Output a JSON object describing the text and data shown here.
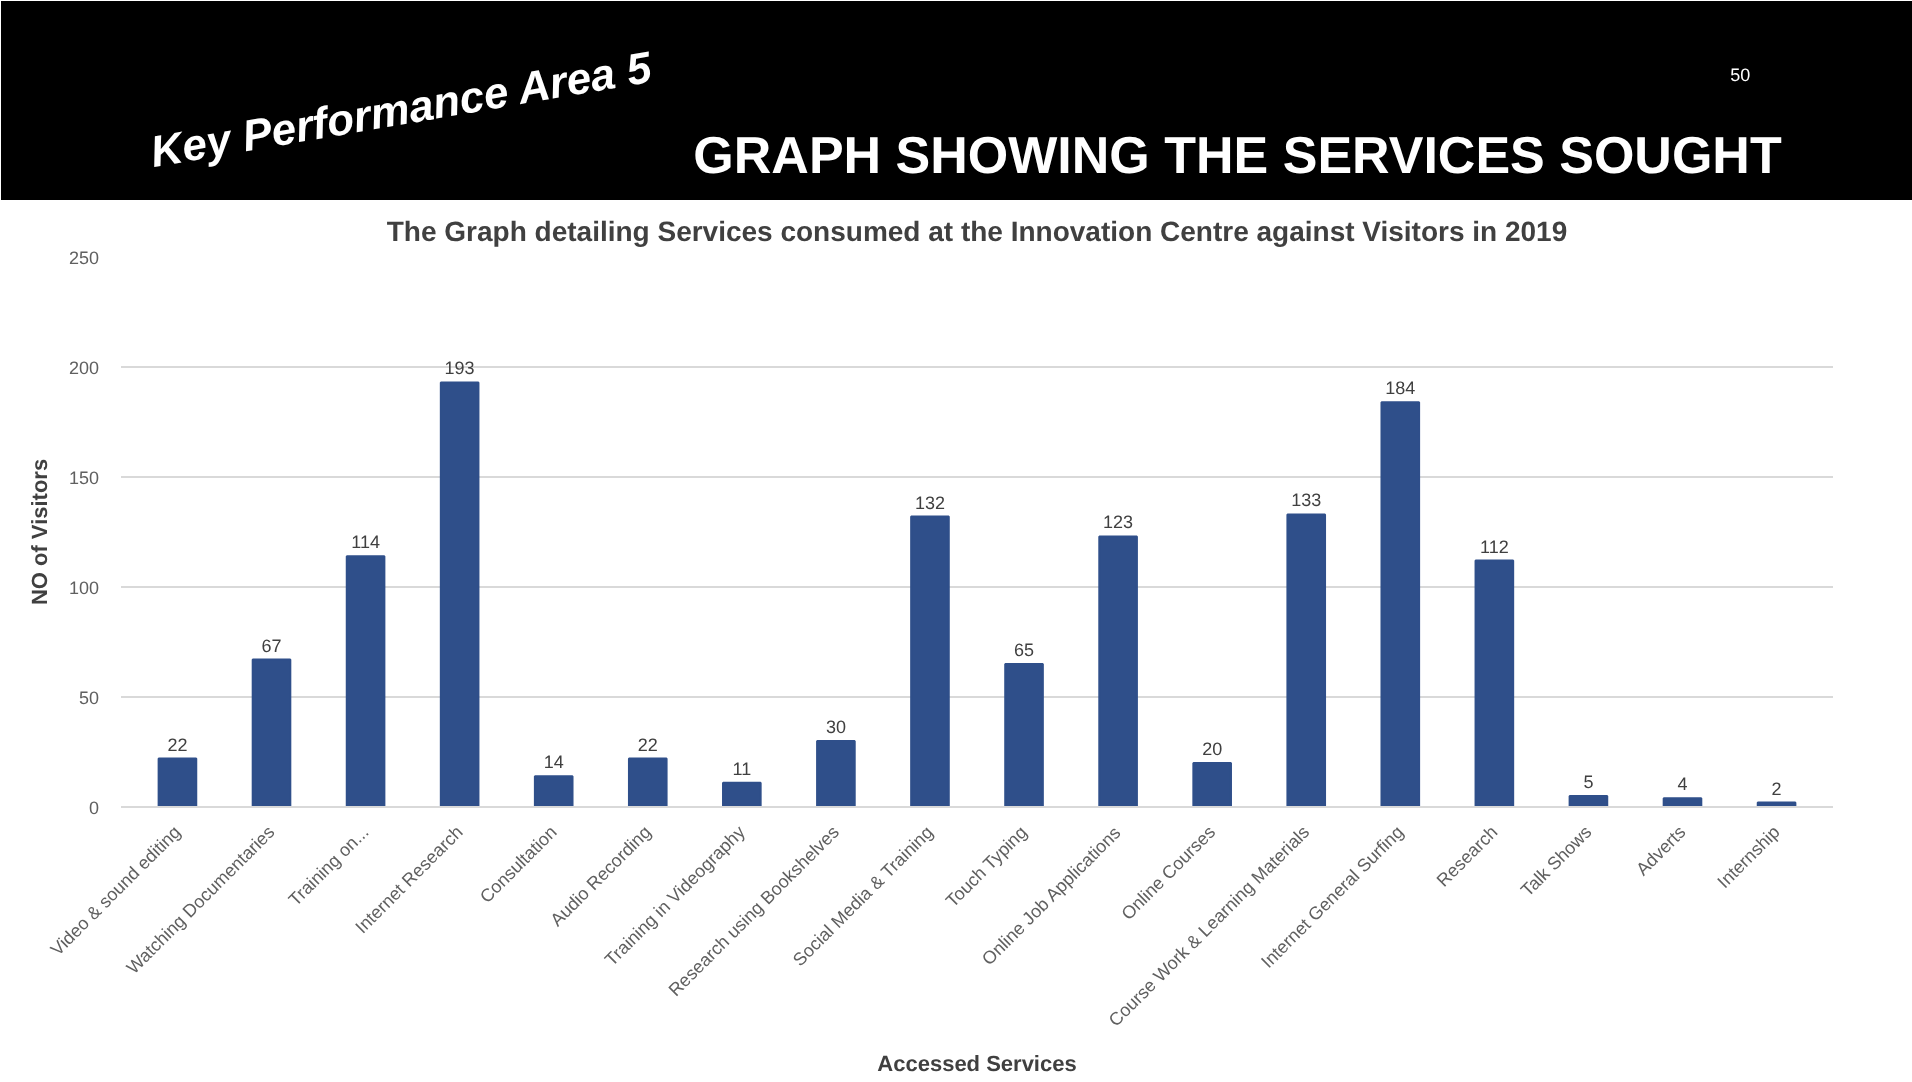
{
  "chart_data": {
    "type": "bar",
    "title": "GRAPH SHOWING THE SERVICES SOUGHT",
    "subtitle": "The Graph detailing Services consumed at the Innovation Centre against Visitors in 2019",
    "annotations": [
      "Key Performance Area 5",
      "50"
    ],
    "xlabel": "Accessed Services",
    "ylabel": "NO of Visitors",
    "categories": [
      "Video & sound editing",
      "Watching Documentaries",
      "Training on...",
      "Internet Research",
      "Consultation",
      "Audio Recording",
      "Training in Videography",
      "Research using Bookshelves",
      "Social Media & Training",
      "Touch Typing",
      "Online Job Applications",
      "Online Courses",
      "Course Work & Learning Materials",
      "Internet General Surfing",
      "Research",
      "Talk Shows",
      "Adverts",
      "Internship"
    ],
    "values": [
      22,
      67,
      114,
      193,
      14,
      22,
      11,
      30,
      132,
      65,
      123,
      20,
      133,
      184,
      112,
      5,
      4,
      2
    ],
    "color": "#2f4f8a",
    "ylim": [
      0,
      250
    ],
    "yticks": [
      0,
      50,
      100,
      150,
      200,
      250
    ],
    "grid": "y",
    "data_labels": true
  }
}
